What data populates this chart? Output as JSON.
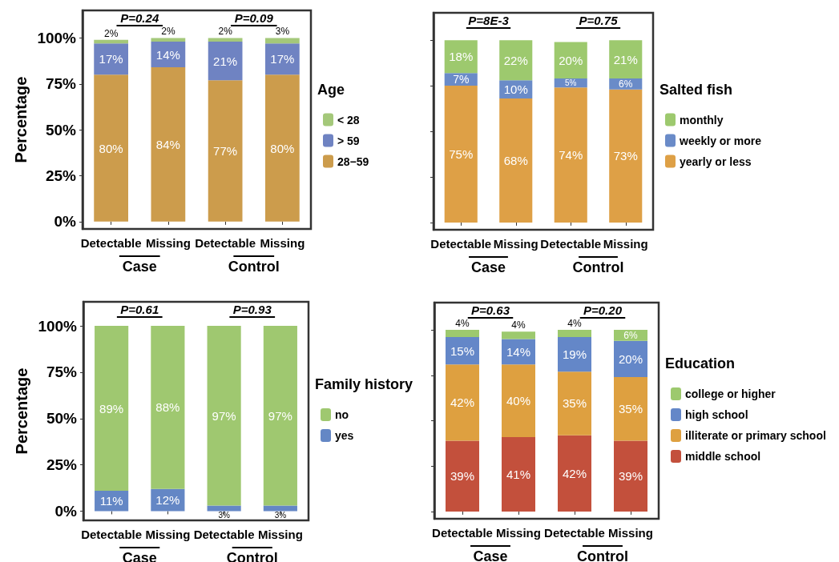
{
  "chart_data": [
    {
      "type": "bar",
      "stacked": true,
      "ylabel": "Percentage",
      "legend_title": "Age",
      "legend": "right",
      "grid": false,
      "categories": [
        "Detectable",
        "Missing",
        "Detectable",
        "Missing"
      ],
      "ylim": [
        -4,
        115
      ],
      "yticks": [
        {
          "value": 0,
          "label": "0%"
        },
        {
          "value": 25,
          "label": "25%"
        },
        {
          "value": 50,
          "label": "50%"
        },
        {
          "value": 75,
          "label": "75%"
        },
        {
          "value": 100,
          "label": "100%"
        }
      ],
      "series": [
        {
          "name": "28−59",
          "color": "#cc9c4c",
          "values": [
            80,
            84,
            77,
            80
          ],
          "value_labels": [
            "80%",
            "84%",
            "77%",
            "80%"
          ]
        },
        {
          "name": "> 59",
          "color": "#6f83c2",
          "values": [
            17,
            14,
            21,
            17
          ],
          "value_labels": [
            "17%",
            "14%",
            "21%",
            "17%"
          ]
        },
        {
          "name": "< 28",
          "color": "#a4c87a",
          "values": [
            2,
            2,
            2,
            3
          ],
          "value_labels": [
            "2%",
            "2%",
            "2%",
            "3%"
          ]
        }
      ],
      "annotations": [
        "P=0.24",
        "P=0.09",
        "Case",
        "Control"
      ]
    },
    {
      "type": "bar",
      "stacked": true,
      "legend_title": "Salted fish",
      "legend": "right",
      "grid": false,
      "categories": [
        "Detectable",
        "Missing",
        "Detectable",
        "Missing"
      ],
      "ylim": [
        -4,
        115
      ],
      "yticks": [
        {
          "value": 0,
          "label": null
        },
        {
          "value": 25,
          "label": null
        },
        {
          "value": 50,
          "label": null
        },
        {
          "value": 75,
          "label": null
        },
        {
          "value": 100,
          "label": null
        }
      ],
      "series": [
        {
          "name": "yearly or less",
          "color": "#dea046",
          "values": [
            75,
            68,
            74,
            73
          ],
          "value_labels": [
            "75%",
            "68%",
            "74%",
            "73%"
          ]
        },
        {
          "name": "weekly or more",
          "color": "#6a8bc8",
          "values": [
            7,
            10,
            5,
            6
          ],
          "value_labels": [
            "7%",
            "10%",
            "5%",
            "6%"
          ]
        },
        {
          "name": "monthly",
          "color": "#9dc96e",
          "values": [
            18,
            22,
            20,
            21
          ],
          "value_labels": [
            "18%",
            "22%",
            "20%",
            "21%"
          ]
        }
      ],
      "annotations": [
        "P=8E-3",
        "P=0.75",
        "Case",
        "Control"
      ]
    },
    {
      "type": "bar",
      "stacked": true,
      "ylabel": "Percentage",
      "legend_title": "Family history",
      "legend": "right",
      "grid": false,
      "categories": [
        "Detectable",
        "Missing",
        "Detectable",
        "Missing"
      ],
      "ylim": [
        -5,
        113
      ],
      "yticks": [
        {
          "value": 0,
          "label": "0%"
        },
        {
          "value": 25,
          "label": "25%"
        },
        {
          "value": 50,
          "label": "50%"
        },
        {
          "value": 75,
          "label": "75%"
        },
        {
          "value": 100,
          "label": "100%"
        }
      ],
      "series": [
        {
          "name": "yes",
          "color": "#6487c5",
          "values": [
            11,
            12,
            3,
            3
          ],
          "value_labels": [
            "11%",
            "12%",
            "3%",
            "3%"
          ]
        },
        {
          "name": "no",
          "color": "#9fc870",
          "values": [
            89,
            88,
            97,
            97
          ],
          "value_labels": [
            "89%",
            "88%",
            "97%",
            "97%"
          ]
        }
      ],
      "annotations": [
        "P=0.61",
        "P=0.93",
        "Case",
        "Control"
      ]
    },
    {
      "type": "bar",
      "stacked": true,
      "legend_title": "Education",
      "legend": "right",
      "grid": false,
      "categories": [
        "Detectable",
        "Missing",
        "Detectable",
        "Missing"
      ],
      "ylim": [
        -4,
        115
      ],
      "yticks": [
        {
          "value": 0,
          "label": null
        },
        {
          "value": 25,
          "label": null
        },
        {
          "value": 50,
          "label": null
        },
        {
          "value": 75,
          "label": null
        },
        {
          "value": 100,
          "label": null
        }
      ],
      "series": [
        {
          "name": "middle school",
          "color": "#c3503c",
          "values": [
            39,
            41,
            42,
            39
          ],
          "value_labels": [
            "39%",
            "41%",
            "42%",
            "39%"
          ]
        },
        {
          "name": "illiterate or primary school",
          "color": "#dea040",
          "values": [
            42,
            40,
            35,
            35
          ],
          "value_labels": [
            "42%",
            "40%",
            "35%",
            "35%"
          ]
        },
        {
          "name": "high school",
          "color": "#6487c8",
          "values": [
            15,
            14,
            19,
            20
          ],
          "value_labels": [
            "15%",
            "14%",
            "19%",
            "20%"
          ]
        },
        {
          "name": "college or higher",
          "color": "#9dc96e",
          "values": [
            4,
            4,
            4,
            6
          ],
          "value_labels": [
            "4%",
            "4%",
            "4%",
            "6%"
          ]
        }
      ],
      "annotations": [
        "P=0.63",
        "P=0.20",
        "Case",
        "Control"
      ]
    }
  ]
}
